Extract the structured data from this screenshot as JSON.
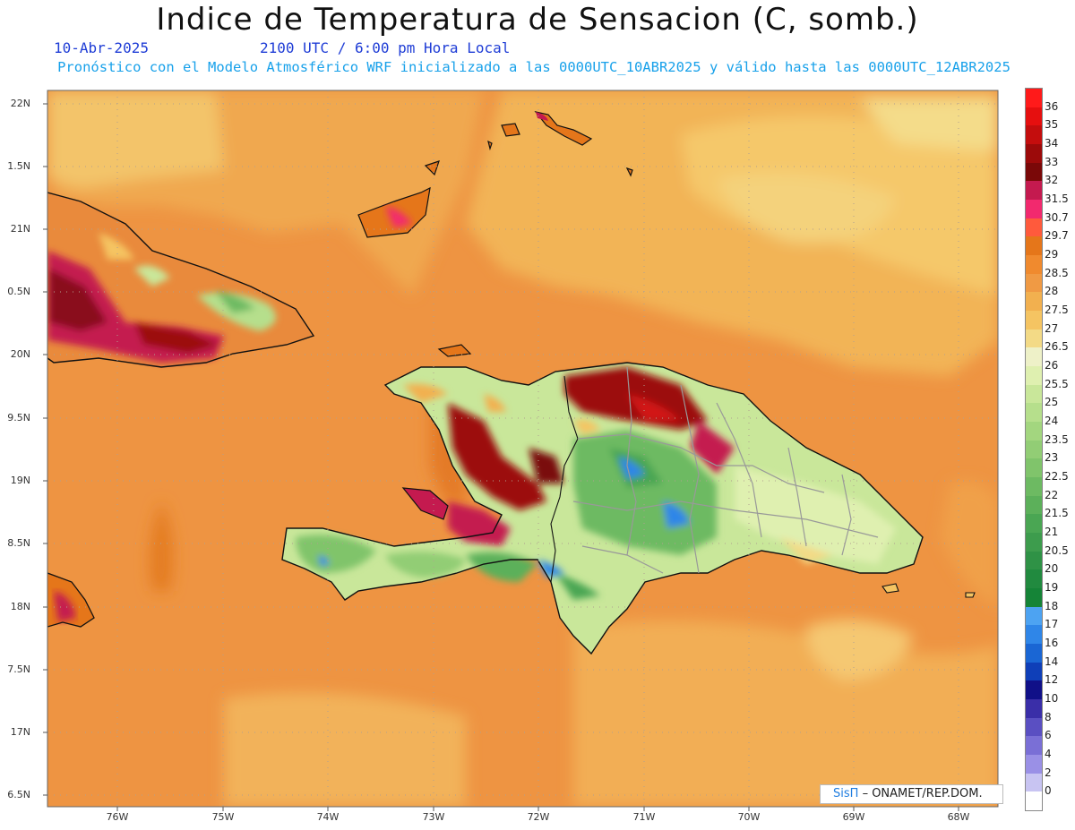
{
  "title": "Indice de Temperatura de Sensacion (C, somb.)",
  "date": "10-Abr-2025",
  "time": "2100 UTC / 6:00 pm Hora Local",
  "forecast_note": "Pronóstico con el Modelo Atmosférico WRF inicializado a las 0000UTC_10ABR2025 y válido hasta las  0000UTC_12ABR2025",
  "lat_labels": [
    "22N",
    "1.5N",
    "21N",
    "0.5N",
    "20N",
    "9.5N",
    "19N",
    "8.5N",
    "18N",
    "7.5N",
    "17N",
    "6.5N"
  ],
  "lon_labels": [
    "76W",
    "75W",
    "74W",
    "73W",
    "72W",
    "71W",
    "70W",
    "69W",
    "68W"
  ],
  "colorbar": {
    "labels": [
      "36",
      "35",
      "34",
      "33",
      "32",
      "31.5",
      "30.7",
      "29.7",
      "29",
      "28.5",
      "28",
      "27.5",
      "27",
      "26.5",
      "26",
      "25.5",
      "25",
      "24",
      "23.5",
      "23",
      "22.5",
      "22",
      "21.5",
      "21",
      "20.5",
      "20",
      "19",
      "18",
      "17",
      "16",
      "14",
      "12",
      "10",
      "8",
      "6",
      "4",
      "2",
      "0"
    ],
    "colors": [
      "#ff1a1a",
      "#e60f0f",
      "#c40d0d",
      "#9c0a0a",
      "#7a0808",
      "#c41a4f",
      "#f2296e",
      "#ff5a3c",
      "#e5761a",
      "#f08a2e",
      "#f09a44",
      "#f2b04f",
      "#f5c462",
      "#f3da86",
      "#eef1c8",
      "#dff0b0",
      "#c9e79a",
      "#b6df8c",
      "#a3d67f",
      "#92cd75",
      "#80c46b",
      "#6dba62",
      "#5cb05a",
      "#4aa653",
      "#3d9c4d",
      "#2f9246",
      "#218a3f",
      "#158437",
      "#4da3f2",
      "#2f86e8",
      "#1a66d4",
      "#0f3fb8",
      "#101088",
      "#3a2ea8",
      "#5a4fc2",
      "#7a6fd6",
      "#9a90e6",
      "#c8c4f2",
      "#ffffff"
    ]
  },
  "credit": {
    "brand": "SisΠ",
    "text": "– ONAMET/REP.DOM."
  },
  "land_label_none": ""
}
